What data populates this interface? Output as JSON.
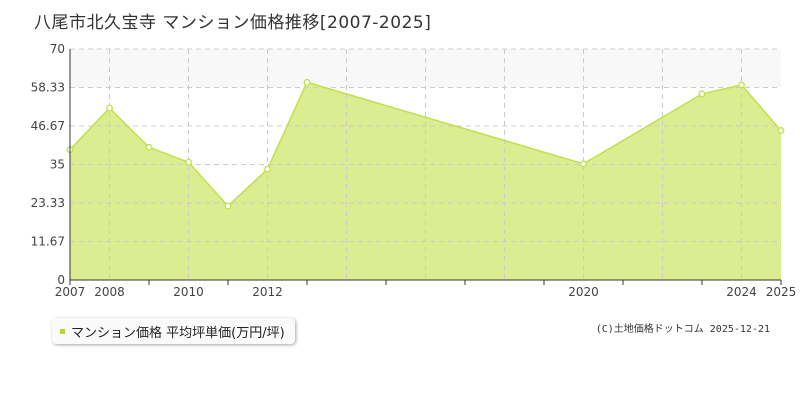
{
  "title": "八尾市北久宝寺 マンション価格推移[2007-2025]",
  "legend_label": "マンション価格 平均坪単価(万円/坪)",
  "credit": "(C)土地価格ドットコム 2025-12-21",
  "colors": {
    "fill": "#dcec91",
    "line": "#c2e04a",
    "grid": "#cccccc",
    "band": "#f8f8f8",
    "axis": "#333333",
    "marker": "#b5d43b"
  },
  "chart_data": {
    "type": "area",
    "x": [
      2007,
      2008,
      2009,
      2010,
      2011,
      2012,
      2013,
      2020,
      2023,
      2024,
      2025
    ],
    "x_tick_labels": [
      "2007",
      "2008",
      "2010",
      "2012",
      "2020",
      "2024",
      "2025"
    ],
    "series": [
      {
        "name": "マンション価格 平均坪単価(万円/坪)",
        "values": [
          39.5,
          52.1,
          40.2,
          35.7,
          22.4,
          33.6,
          59.9,
          35.2,
          56.4,
          59.1,
          45.3
        ]
      }
    ],
    "y_ticks": [
      "0",
      "11.67",
      "23.33",
      "35",
      "46.67",
      "58.33",
      "70"
    ],
    "ylim": [
      0,
      70
    ],
    "grid": true,
    "legend_position": "bottom-left"
  }
}
